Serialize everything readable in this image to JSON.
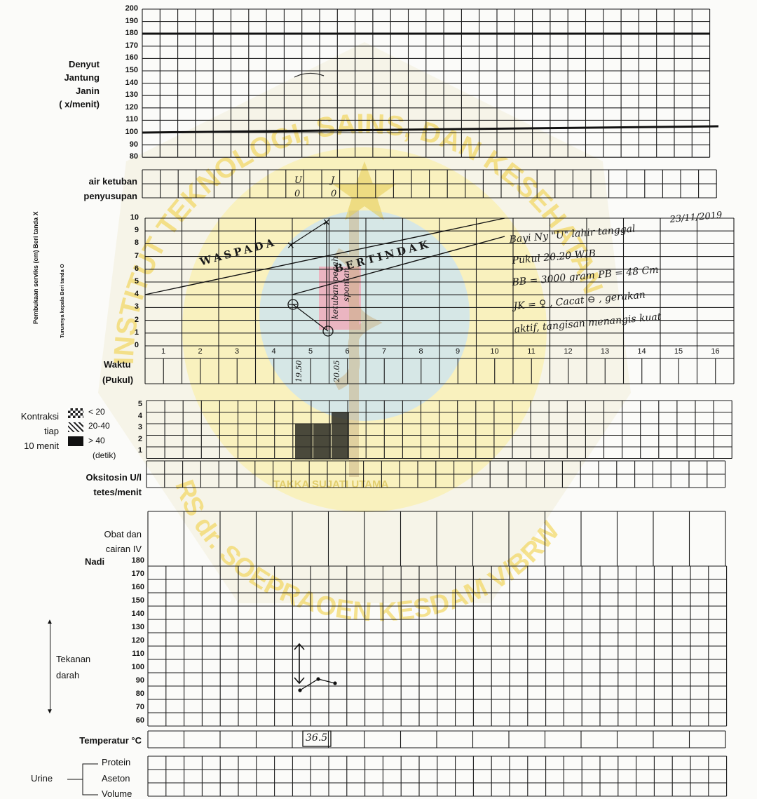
{
  "fhr": {
    "title_lines": [
      "Denyut",
      "Jantung",
      "Janin",
      "(     x/menit)"
    ],
    "ticks": [
      "200",
      "190",
      "180",
      "170",
      "160",
      "150",
      "140",
      "130",
      "120",
      "110",
      "100",
      "90",
      "80"
    ]
  },
  "amniotic": {
    "air_ketuban_label": "air ketuban",
    "penyusupan_label": "penyusupan",
    "air_ketuban_values": [
      "U",
      "J"
    ],
    "penyusupan_values": [
      "0",
      "0"
    ]
  },
  "cervix": {
    "dilation_label": "Pembukaan serviks (cm) Beri tanda X",
    "descent_label": "Turunnya kepala Beri tanda O",
    "ticks": [
      "10",
      "9",
      "8",
      "7",
      "6",
      "5",
      "4",
      "3",
      "2",
      "1",
      "0"
    ],
    "hours": [
      "1",
      "2",
      "3",
      "4",
      "5",
      "6",
      "7",
      "8",
      "9",
      "10",
      "11",
      "12",
      "13",
      "14",
      "15",
      "16"
    ],
    "waspada": "WASPADA",
    "bertindak": "BERTINDAK",
    "note_rupture": "ketuban pecah",
    "note_spontan": "spontan",
    "time_label_1": "Waktu",
    "time_label_2": "(Pukul)",
    "times": [
      "19.50",
      "20.05"
    ]
  },
  "birth_note": {
    "lines": [
      "Bayi Ny \"U\" lahir tanggal",
      "Pukul   20.20  WIB",
      "BB = 3000 gram   PB = 48 Cm",
      "JK = ♀ , Cacat ⊖ , gerakan",
      "aktif, tangisan menangis kuat"
    ],
    "date": "23/11/2019"
  },
  "contractions": {
    "title_lines": [
      "Kontraksi",
      "tiap",
      "10 menit"
    ],
    "legend": [
      "< 20",
      "20-40",
      "> 40",
      "(detik)"
    ],
    "ticks": [
      "5",
      "4",
      "3",
      "2",
      "1"
    ]
  },
  "oxytocin": {
    "label_1": "Oksitosin U/l",
    "label_2": "tetes/menit"
  },
  "drugs": {
    "label_1": "Obat dan",
    "label_2": "cairan IV"
  },
  "vitals": {
    "nadi_label": "Nadi",
    "bp_label_1": "Tekanan",
    "bp_label_2": "darah",
    "ticks": [
      "180",
      "170",
      "160",
      "150",
      "140",
      "130",
      "120",
      "110",
      "100",
      "90",
      "80",
      "70",
      "60"
    ]
  },
  "temperature": {
    "label": "Temperatur  °C",
    "value": "36.5"
  },
  "urine": {
    "label": "Urine",
    "rows": [
      "Protein",
      "Aseton",
      "Volume"
    ]
  },
  "watermark": {
    "text_top": "INSTITUT TEKNOLOGI, SAINS, DAN KESEHATAN",
    "text_bottom": "RS dr. SOEPRAOEN KESDAM V/BRW",
    "motto": "TAKKA SUJATI UTAMA",
    "color": "#f2d24a"
  }
}
